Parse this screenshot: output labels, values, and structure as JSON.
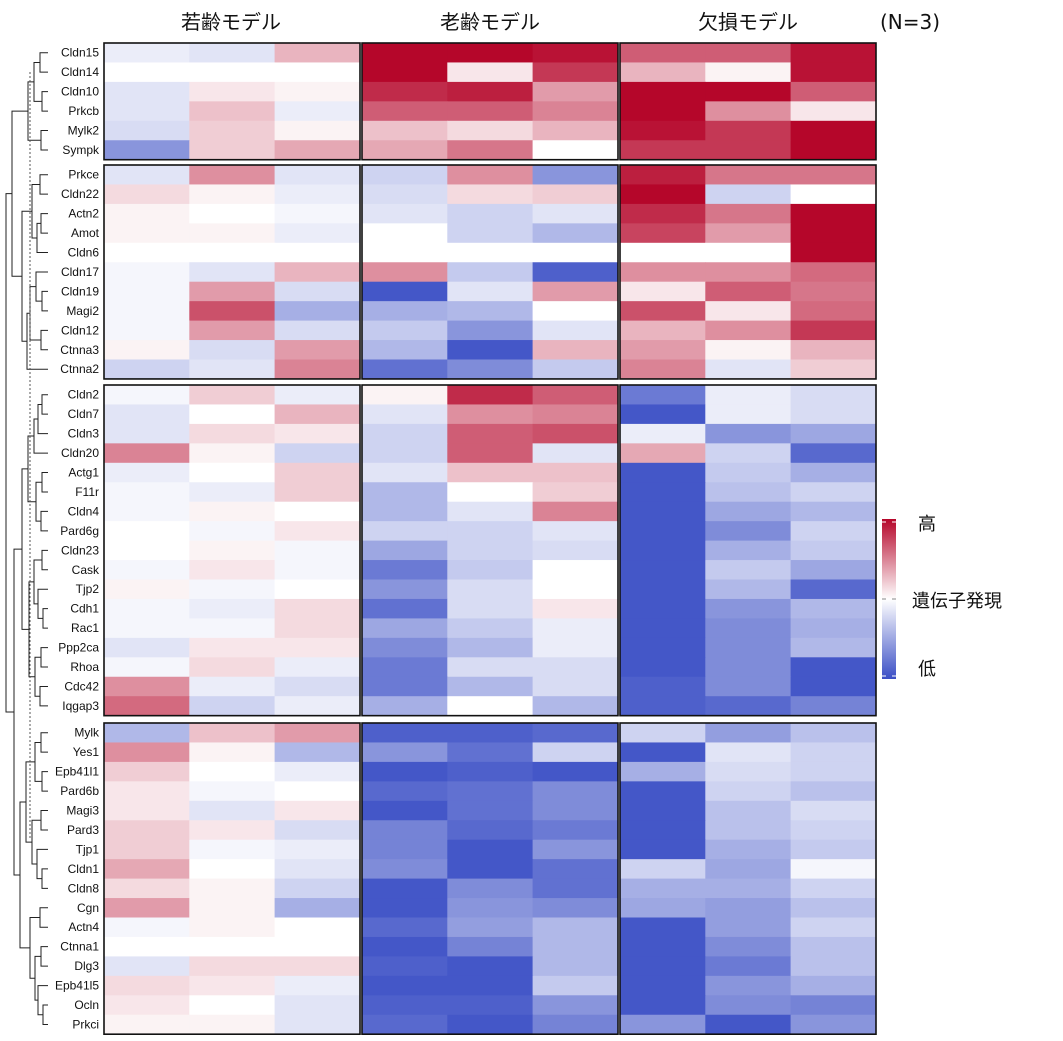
{
  "chart_data": {
    "type": "heatmap",
    "groups": [
      "若齢モデル",
      "老齢モデル",
      "欠損モデル"
    ],
    "n_label": "(N=3)",
    "replicates_per_group": 3,
    "legend": {
      "high": "高",
      "mid": "遺伝子発現",
      "low": "低"
    },
    "color_scale": {
      "low": "#3a4ec5",
      "mid": "#ffffff",
      "high": "#b5062a",
      "range": [
        -2,
        2
      ]
    },
    "row_blocks": [
      [
        "Cldn15",
        "Cldn14",
        "Cldn10",
        "Prkcb",
        "Mylk2",
        "Sympk"
      ],
      [
        "Prkce",
        "Cldn22",
        "Actn2",
        "Amot",
        "Cldn6",
        "Cldn17",
        "Cldn19",
        "Magi2",
        "Cldn12",
        "Ctnna3",
        "Ctnna2"
      ],
      [
        "Cldn2",
        "Cldn7",
        "Cldn3",
        "Cldn20",
        "Actg1",
        "F11r",
        "Cldn4",
        "Pard6g",
        "Cldn23",
        "Cask",
        "Tjp2",
        "Cdh1",
        "Rac1",
        "Ppp2ca",
        "Rhoa",
        "Cdc42",
        "Iqgap3"
      ],
      [
        "Mylk",
        "Yes1",
        "Epb41l1",
        "Pard6b",
        "Magi3",
        "Pard3",
        "Tjp1",
        "Cldn1",
        "Cldn8",
        "Cgn",
        "Actn4",
        "Ctnna1",
        "Dlg3",
        "Epb41l5",
        "Ocln",
        "Prkci"
      ]
    ],
    "values": [
      [
        -0.2,
        -0.3,
        0.6,
        2,
        2,
        1.9,
        1.3,
        1.3,
        1.9
      ],
      [
        0,
        0,
        0,
        2,
        0.2,
        1.6,
        0.6,
        0.1,
        1.9
      ],
      [
        -0.3,
        0.2,
        0.1,
        1.7,
        1.8,
        0.8,
        2,
        2,
        1.3
      ],
      [
        -0.3,
        0.5,
        -0.2,
        1.3,
        1.3,
        1.0,
        2,
        0.9,
        0.2
      ],
      [
        -0.4,
        0.4,
        0.1,
        0.5,
        0.3,
        0.6,
        1.9,
        1.6,
        2
      ],
      [
        -1.2,
        0.4,
        0.7,
        0.7,
        1.1,
        0,
        1.6,
        1.6,
        2
      ],
      [
        -0.3,
        0.9,
        -0.3,
        -0.5,
        0.9,
        -1.2,
        1.8,
        1.1,
        1.1
      ],
      [
        0.3,
        0.1,
        -0.2,
        -0.4,
        0.3,
        0.4,
        2,
        -0.5,
        0
      ],
      [
        0.1,
        0,
        -0.1,
        -0.3,
        -0.5,
        -0.3,
        1.7,
        1.1,
        2
      ],
      [
        0.1,
        0.1,
        -0.2,
        0,
        -0.5,
        -0.8,
        1.5,
        0.8,
        2
      ],
      [
        0,
        0,
        0,
        0,
        0,
        0,
        0,
        0,
        2
      ],
      [
        -0.1,
        -0.3,
        0.6,
        0.9,
        -0.6,
        -1.8,
        0.9,
        0.9,
        1.2
      ],
      [
        -0.1,
        0.8,
        -0.4,
        -1.9,
        -0.3,
        0.8,
        0.2,
        1.3,
        1.1
      ],
      [
        -0.1,
        1.4,
        -0.9,
        -0.9,
        -0.8,
        0,
        1.4,
        0.2,
        1.2
      ],
      [
        -0.1,
        0.8,
        -0.4,
        -0.6,
        -1.2,
        -0.3,
        0.6,
        0.9,
        1.6
      ],
      [
        0.1,
        -0.4,
        0.8,
        -0.8,
        -1.9,
        0.6,
        0.8,
        0.1,
        0.6
      ],
      [
        -0.5,
        -0.3,
        1.0,
        -1.6,
        -1.3,
        -0.6,
        1.0,
        -0.3,
        0.4
      ],
      [
        -0.1,
        0.4,
        -0.2,
        0.1,
        1.7,
        1.3,
        -1.5,
        -0.2,
        -0.4
      ],
      [
        -0.3,
        0,
        0.6,
        -0.3,
        0.9,
        1.0,
        -1.9,
        -0.2,
        -0.4
      ],
      [
        -0.3,
        0.3,
        0.2,
        -0.5,
        1.3,
        1.4,
        -0.2,
        -1.2,
        -1.0
      ],
      [
        1.0,
        0.1,
        -0.5,
        -0.5,
        1.3,
        -0.3,
        0.7,
        -0.5,
        -1.7
      ],
      [
        -0.2,
        0,
        0.4,
        -0.3,
        0.5,
        0.5,
        -1.9,
        -0.6,
        -0.9
      ],
      [
        -0.1,
        -0.2,
        0.4,
        -0.8,
        0,
        0.4,
        -1.9,
        -0.7,
        -0.5
      ],
      [
        -0.1,
        0.1,
        0,
        -0.8,
        -0.3,
        1.0,
        -1.9,
        -1.0,
        -0.8
      ],
      [
        0,
        -0.1,
        0.2,
        -0.5,
        -0.5,
        -0.3,
        -1.9,
        -1.3,
        -0.5
      ],
      [
        0,
        0.1,
        -0.1,
        -1.0,
        -0.5,
        -0.4,
        -1.9,
        -0.9,
        -0.6
      ],
      [
        -0.1,
        0.2,
        -0.1,
        -1.5,
        -0.6,
        0,
        -1.9,
        -0.6,
        -1.0
      ],
      [
        0.1,
        -0.1,
        0,
        -1.2,
        -0.4,
        0,
        -1.9,
        -0.8,
        -1.7
      ],
      [
        -0.1,
        -0.2,
        0.3,
        -1.6,
        -0.4,
        0.2,
        -1.9,
        -1.2,
        -0.8
      ],
      [
        -0.1,
        -0.1,
        0.3,
        -1.0,
        -0.6,
        -0.2,
        -1.9,
        -1.3,
        -0.9
      ],
      [
        -0.3,
        0.2,
        0.2,
        -1.3,
        -0.8,
        -0.2,
        -1.9,
        -1.3,
        -0.8
      ],
      [
        -0.1,
        0.3,
        -0.2,
        -1.5,
        -0.4,
        -0.4,
        -1.9,
        -1.3,
        -1.9
      ],
      [
        0.9,
        -0.2,
        -0.4,
        -1.5,
        -0.8,
        -0.4,
        -1.8,
        -1.3,
        -1.9
      ],
      [
        1.2,
        -0.5,
        -0.2,
        -0.9,
        0,
        -0.8,
        -1.8,
        -1.7,
        -1.4
      ],
      [
        -0.8,
        0.5,
        0.8,
        -1.8,
        -1.8,
        -1.7,
        -0.5,
        -1.1,
        -0.7
      ],
      [
        0.9,
        0.1,
        -0.8,
        -1.2,
        -1.6,
        -0.5,
        -1.9,
        -0.3,
        -0.5
      ],
      [
        0.4,
        0,
        -0.2,
        -1.9,
        -1.8,
        -1.9,
        -0.9,
        -0.4,
        -0.5
      ],
      [
        0.2,
        -0.1,
        0,
        -1.7,
        -1.6,
        -1.3,
        -1.9,
        -0.5,
        -0.7
      ],
      [
        0.2,
        -0.3,
        0.2,
        -1.9,
        -1.6,
        -1.3,
        -1.9,
        -0.7,
        -0.4
      ],
      [
        0.4,
        0.2,
        -0.4,
        -1.4,
        -1.7,
        -1.5,
        -1.9,
        -0.7,
        -0.5
      ],
      [
        0.4,
        -0.1,
        -0.2,
        -1.4,
        -1.9,
        -1.2,
        -1.9,
        -0.9,
        -0.6
      ],
      [
        0.7,
        0,
        -0.3,
        -1.3,
        -1.9,
        -1.6,
        -0.5,
        -1.0,
        -0.1
      ],
      [
        0.3,
        0.1,
        -0.5,
        -1.9,
        -1.3,
        -1.6,
        -0.9,
        -0.9,
        -0.5
      ],
      [
        0.8,
        0.1,
        -0.9,
        -1.9,
        -1.2,
        -1.3,
        -1.0,
        -1.1,
        -0.7
      ],
      [
        -0.1,
        0.1,
        0,
        -1.7,
        -1.1,
        -0.8,
        -1.9,
        -1.1,
        -0.5
      ],
      [
        0,
        0,
        0,
        -1.9,
        -1.4,
        -0.8,
        -1.9,
        -1.3,
        -0.7
      ],
      [
        -0.3,
        0.3,
        0.3,
        -1.8,
        -1.9,
        -0.8,
        -1.9,
        -1.5,
        -0.7
      ],
      [
        0.3,
        0.2,
        -0.2,
        -1.9,
        -1.9,
        -0.6,
        -1.9,
        -1.2,
        -0.9
      ],
      [
        0.2,
        0,
        -0.3,
        -1.8,
        -1.8,
        -1.2,
        -1.9,
        -1.3,
        -1.4
      ],
      [
        0.1,
        0.1,
        -0.3,
        -1.7,
        -1.9,
        -1.4,
        -1.2,
        -1.9,
        -1.2
      ]
    ]
  }
}
